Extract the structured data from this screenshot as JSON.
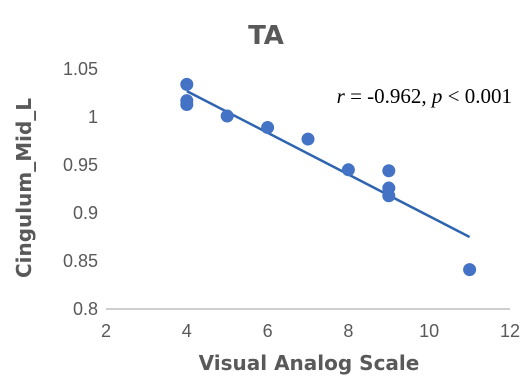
{
  "chart_data": {
    "type": "scatter",
    "title": "TA",
    "xlabel": "Visual Analog Scale",
    "ylabel": "Cingulum_Mid_L",
    "xlim": [
      2,
      12
    ],
    "ylim": [
      0.8,
      1.05
    ],
    "xticks": [
      "2",
      "4",
      "6",
      "8",
      "10",
      "12"
    ],
    "yticks": [
      "0.8",
      "0.85",
      "0.9",
      "0.95",
      "1",
      "1.05"
    ],
    "grid": false,
    "legend": "none",
    "series": [
      {
        "points": [
          {
            "x": 4,
            "y": 1.034
          },
          {
            "x": 4,
            "y": 1.017
          },
          {
            "x": 4,
            "y": 1.013
          },
          {
            "x": 5,
            "y": 1.001
          },
          {
            "x": 6,
            "y": 0.989
          },
          {
            "x": 7,
            "y": 0.977
          },
          {
            "x": 8,
            "y": 0.945
          },
          {
            "x": 9,
            "y": 0.944
          },
          {
            "x": 9,
            "y": 0.926
          },
          {
            "x": 9,
            "y": 0.918
          },
          {
            "x": 11,
            "y": 0.841
          }
        ]
      }
    ],
    "trendline": {
      "x": [
        4,
        11
      ],
      "y": [
        1.027,
        0.875
      ]
    },
    "annotation": {
      "r_sym": "r",
      "r_text": " = -0.962, ",
      "p_sym": "p",
      "p_text": " < 0.001"
    },
    "colors": {
      "marker": "#4472C4",
      "trendline": "#2E64B0",
      "axis": "#BFBFBF",
      "text": "#595959"
    }
  }
}
